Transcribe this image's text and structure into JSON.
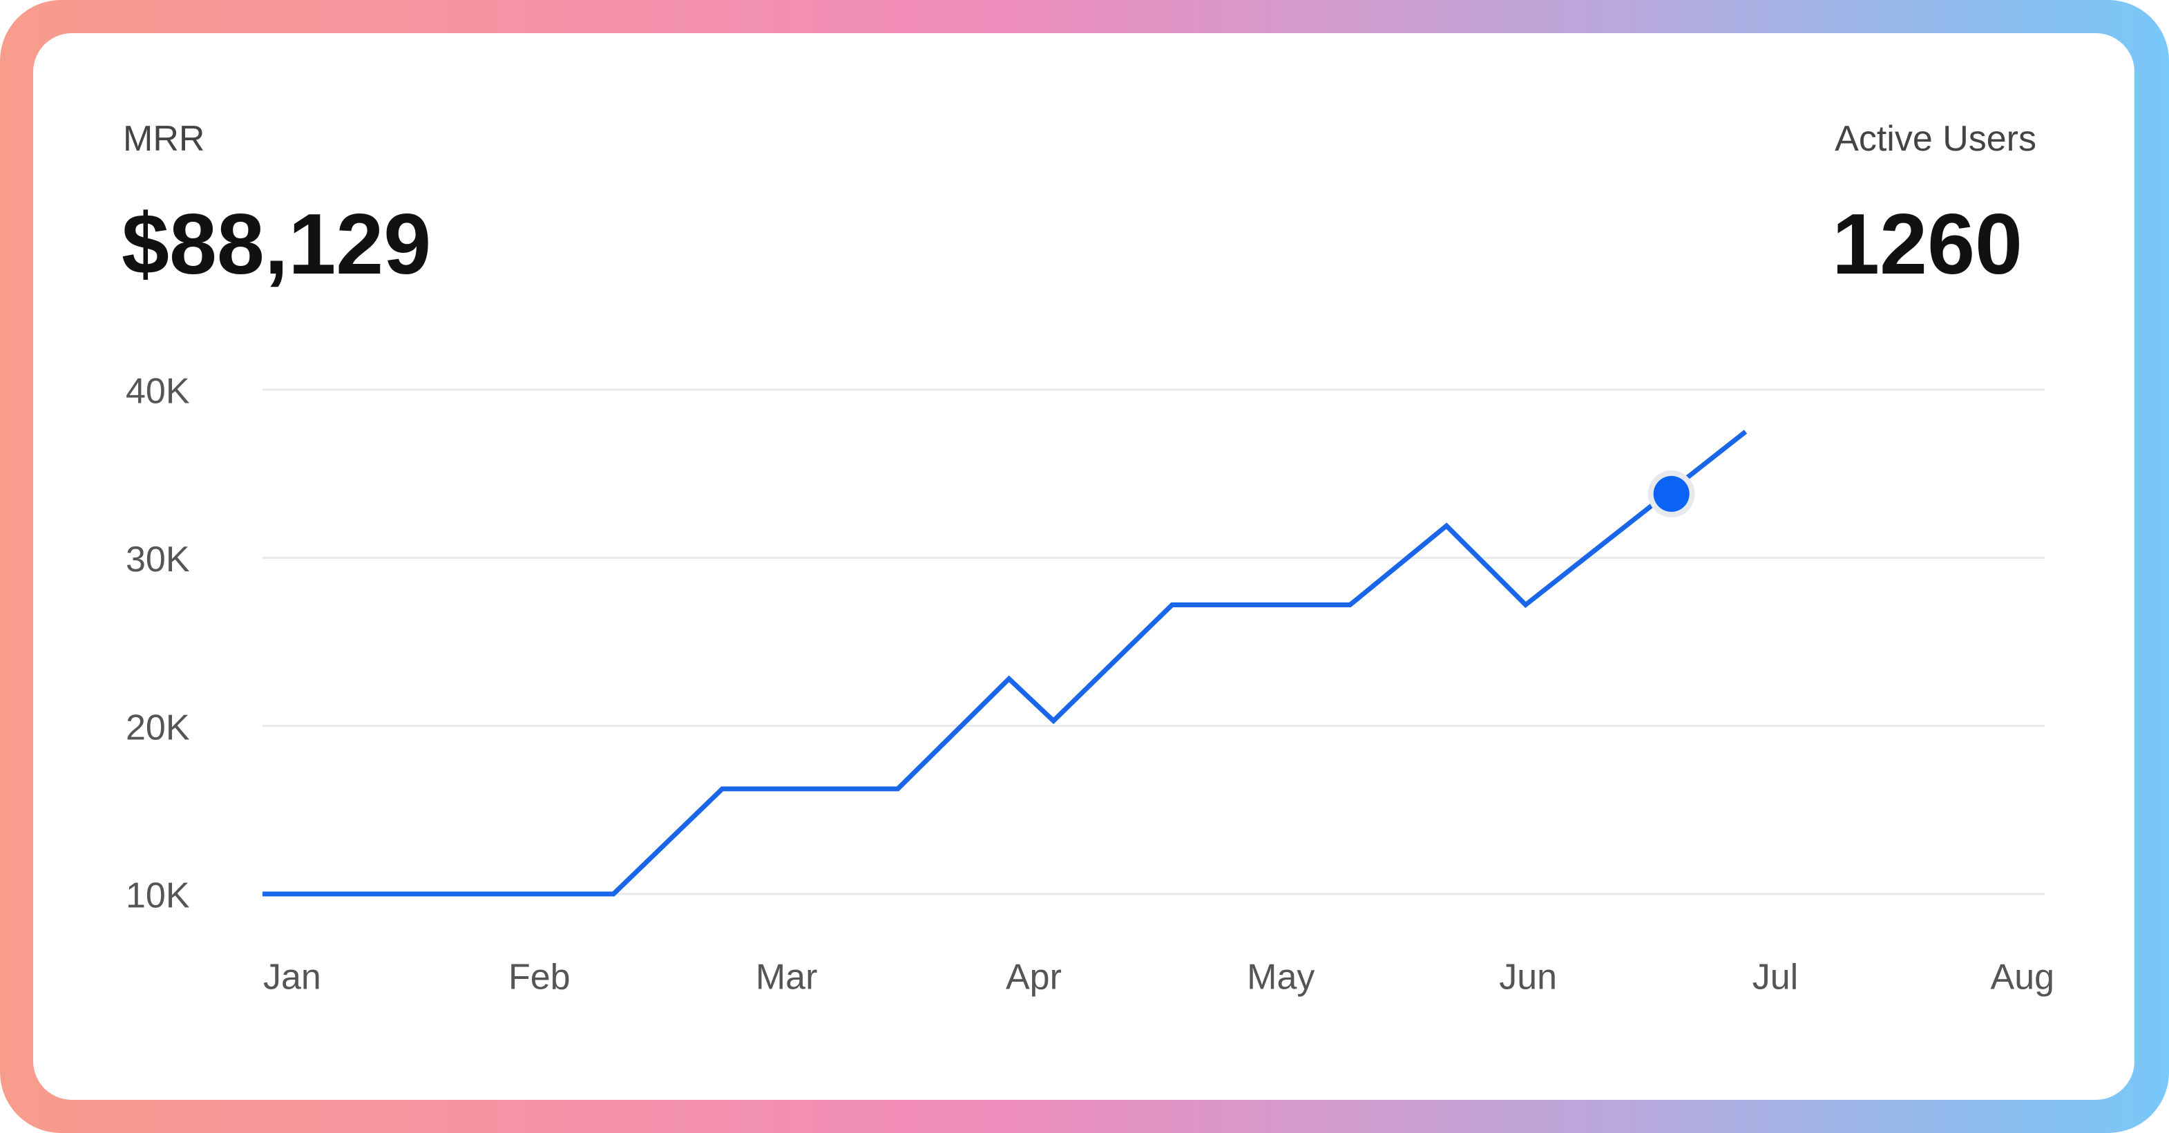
{
  "kpis": [
    {
      "label": "MRR",
      "value": "$88,129"
    },
    {
      "label": "Active Users",
      "value": "1260"
    }
  ],
  "chart_data": {
    "type": "line",
    "x": [
      -0.12,
      1.3,
      1.74,
      2.45,
      2.9,
      3.08,
      3.56,
      4.28,
      4.67,
      4.99,
      5.88
    ],
    "series": [
      {
        "color": "#1a66e8",
        "values": [
          10000,
          10000,
          16250,
          16250,
          22800,
          20300,
          27200,
          27200,
          31900,
          27200,
          37500
        ]
      }
    ],
    "highlight": {
      "x": 5.58,
      "y": 33800,
      "color": "#0a63f5"
    },
    "xlim": [
      -0.12,
      7.09
    ],
    "xticks": [
      {
        "value": 0,
        "label": "Jan"
      },
      {
        "value": 1,
        "label": "Feb"
      },
      {
        "value": 2,
        "label": "Mar"
      },
      {
        "value": 3,
        "label": "Apr"
      },
      {
        "value": 4,
        "label": "May"
      },
      {
        "value": 5,
        "label": "Jun"
      },
      {
        "value": 6,
        "label": "Jul"
      },
      {
        "value": 7,
        "label": "Aug"
      }
    ],
    "ylim": [
      10000,
      40000
    ],
    "yticks": [
      {
        "value": 10000,
        "label": "10K"
      },
      {
        "value": 20000,
        "label": "20K"
      },
      {
        "value": 30000,
        "label": "30K"
      },
      {
        "value": 40000,
        "label": "40K"
      }
    ],
    "grid": true
  }
}
